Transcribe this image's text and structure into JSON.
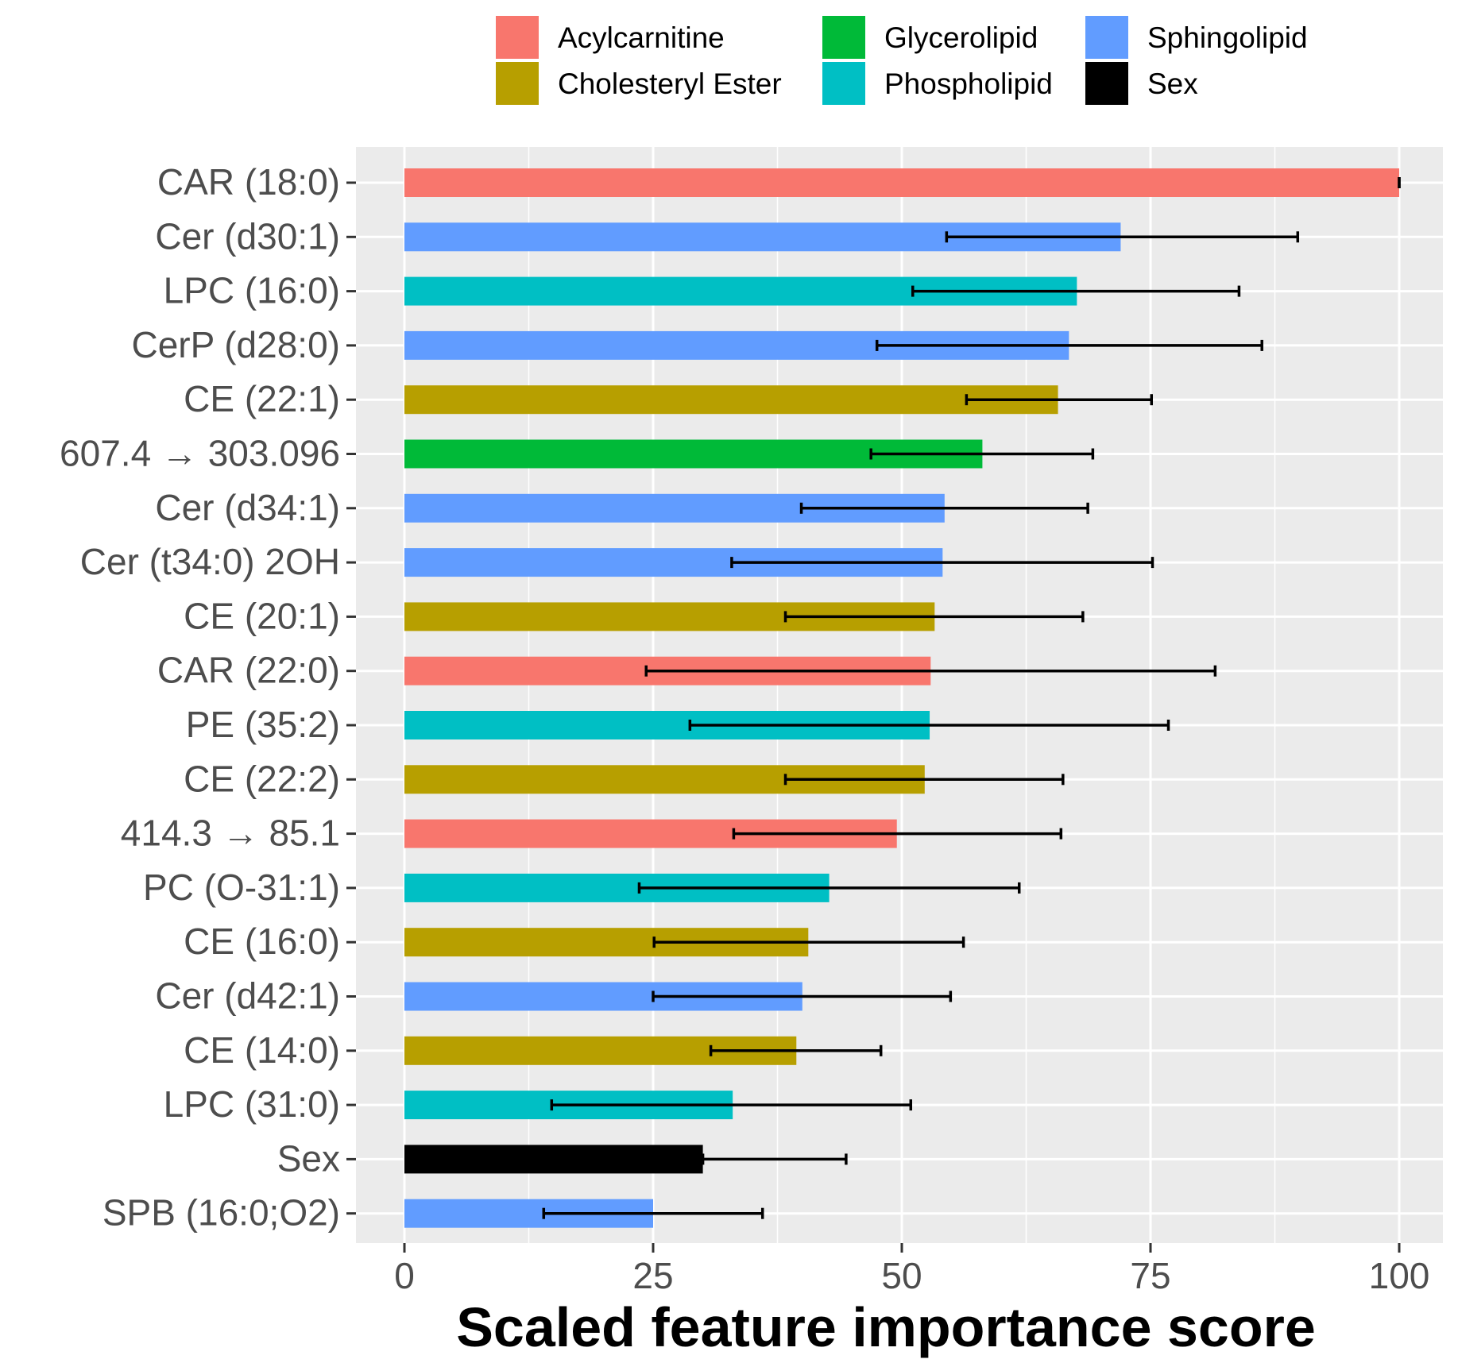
{
  "chart_data": {
    "type": "bar",
    "orientation": "horizontal",
    "title": "",
    "xlabel": "Scaled feature importance score",
    "ylabel": "",
    "xlim": [
      0,
      100
    ],
    "x_ticks": [
      0,
      25,
      50,
      75,
      100
    ],
    "grid": true,
    "legend_position": "top",
    "legend": [
      {
        "name": "Acylcarnitine",
        "color": "#F8766D"
      },
      {
        "name": "Cholesteryl Ester",
        "color": "#B79F00"
      },
      {
        "name": "Glycerolipid",
        "color": "#00BA38"
      },
      {
        "name": "Phospholipid",
        "color": "#00BFC4"
      },
      {
        "name": "Sphingolipid",
        "color": "#619CFF"
      },
      {
        "name": "Sex",
        "color": "#000000"
      }
    ],
    "features": [
      {
        "label": "CAR (18:0)",
        "group": "Acylcarnitine",
        "value": 100,
        "err_low": 100,
        "err_high": 100
      },
      {
        "label": "Cer (d30:1)",
        "group": "Sphingolipid",
        "value": 72,
        "err_low": 54.5,
        "err_high": 89.8
      },
      {
        "label": "LPC (16:0)",
        "group": "Phospholipid",
        "value": 67.6,
        "err_low": 51.1,
        "err_high": 83.9
      },
      {
        "label": "CerP (d28:0)",
        "group": "Sphingolipid",
        "value": 66.8,
        "err_low": 47.5,
        "err_high": 86.2
      },
      {
        "label": "CE (22:1)",
        "group": "Cholesteryl Ester",
        "value": 65.7,
        "err_low": 56.5,
        "err_high": 75.1
      },
      {
        "label": "607.4 → 303.096",
        "group": "Glycerolipid",
        "value": 58.1,
        "err_low": 46.9,
        "err_high": 69.2
      },
      {
        "label": "Cer (d34:1)",
        "group": "Sphingolipid",
        "value": 54.3,
        "err_low": 39.9,
        "err_high": 68.7
      },
      {
        "label": "Cer (t34:0) 2OH",
        "group": "Sphingolipid",
        "value": 54.1,
        "err_low": 32.9,
        "err_high": 75.2
      },
      {
        "label": "CE (20:1)",
        "group": "Cholesteryl Ester",
        "value": 53.3,
        "err_low": 38.3,
        "err_high": 68.2
      },
      {
        "label": "CAR (22:0)",
        "group": "Acylcarnitine",
        "value": 52.9,
        "err_low": 24.3,
        "err_high": 81.5
      },
      {
        "label": "PE (35:2)",
        "group": "Phospholipid",
        "value": 52.8,
        "err_low": 28.7,
        "err_high": 76.8
      },
      {
        "label": "CE (22:2)",
        "group": "Cholesteryl Ester",
        "value": 52.3,
        "err_low": 38.3,
        "err_high": 66.2
      },
      {
        "label": "414.3 → 85.1",
        "group": "Acylcarnitine",
        "value": 49.5,
        "err_low": 33.1,
        "err_high": 66.0
      },
      {
        "label": "PC (O-31:1)",
        "group": "Phospholipid",
        "value": 42.7,
        "err_low": 23.6,
        "err_high": 61.8
      },
      {
        "label": "CE (16:0)",
        "group": "Cholesteryl Ester",
        "value": 40.6,
        "err_low": 25.1,
        "err_high": 56.2
      },
      {
        "label": "Cer (d42:1)",
        "group": "Sphingolipid",
        "value": 40.0,
        "err_low": 25.0,
        "err_high": 54.9
      },
      {
        "label": "CE (14:0)",
        "group": "Cholesteryl Ester",
        "value": 39.4,
        "err_low": 30.8,
        "err_high": 47.9
      },
      {
        "label": "LPC (31:0)",
        "group": "Phospholipid",
        "value": 33.0,
        "err_low": 14.8,
        "err_high": 50.9
      },
      {
        "label": "Sex",
        "group": "Sex",
        "value": 30.0,
        "err_low": 30.0,
        "err_high": 44.4
      },
      {
        "label": "SPB (16:0;O2)",
        "group": "Sphingolipid",
        "value": 25.0,
        "err_low": 14.0,
        "err_high": 36.0
      }
    ]
  }
}
